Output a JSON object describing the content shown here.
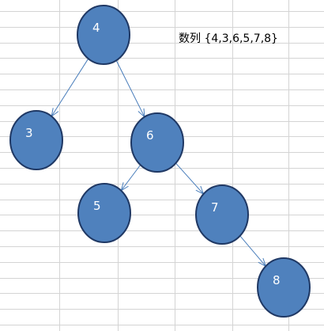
{
  "sequence_label": "数列 {4,3,6,5,7,8}",
  "colors": {
    "node_fill": "#4f81bd",
    "node_stroke": "#1f3864",
    "edge": "#4a7ebb",
    "grid": "#d4d4d4",
    "background": "#ffffff"
  },
  "nodes": [
    {
      "id": "n4",
      "label": "4"
    },
    {
      "id": "n3",
      "label": "3"
    },
    {
      "id": "n6",
      "label": "6"
    },
    {
      "id": "n5",
      "label": "5"
    },
    {
      "id": "n7",
      "label": "7"
    },
    {
      "id": "n8",
      "label": "8"
    }
  ],
  "edges": [
    {
      "from": "n4",
      "to": "n3"
    },
    {
      "from": "n4",
      "to": "n6"
    },
    {
      "from": "n6",
      "to": "n5"
    },
    {
      "from": "n6",
      "to": "n7"
    },
    {
      "from": "n7",
      "to": "n8"
    }
  ]
}
